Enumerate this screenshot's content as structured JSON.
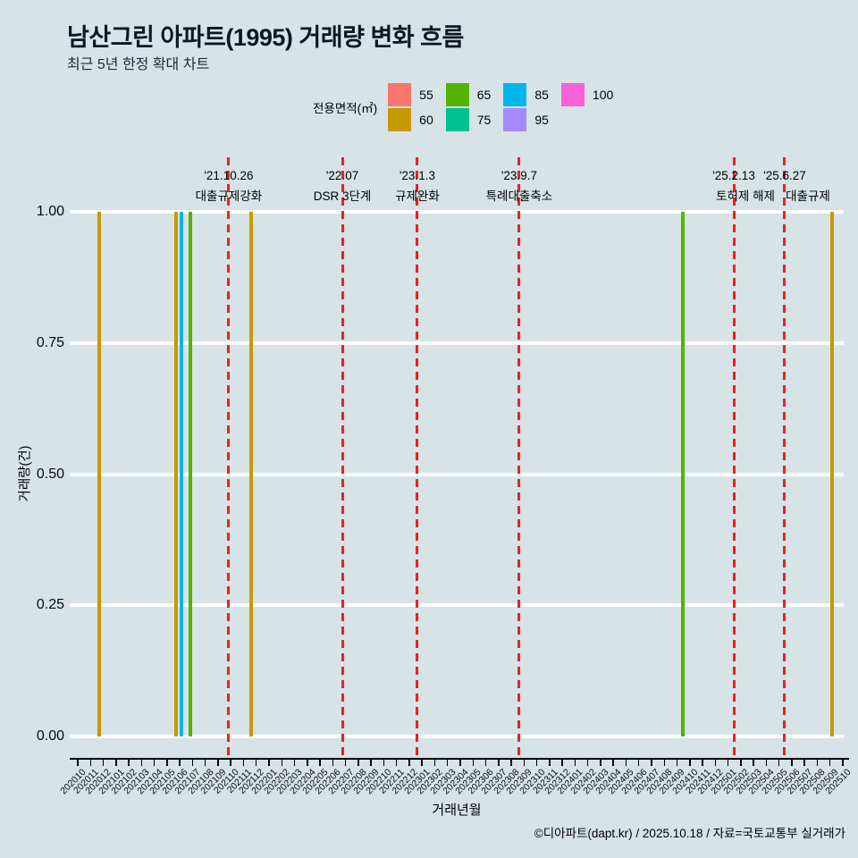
{
  "header": {
    "title": "남산그린 아파트(1995) 거래량 변화 흐름",
    "subtitle": "최근 5년 한정 확대 차트"
  },
  "legend": {
    "title": "전용면적(㎡)",
    "items": [
      {
        "area": "55",
        "color": "#F8766D"
      },
      {
        "area": "60",
        "color": "#C49A00"
      },
      {
        "area": "65",
        "color": "#53B400"
      },
      {
        "area": "75",
        "color": "#00C094"
      },
      {
        "area": "85",
        "color": "#00B6EB"
      },
      {
        "area": "95",
        "color": "#A58AFF"
      },
      {
        "area": "100",
        "color": "#FB61D7"
      }
    ]
  },
  "chart_data": {
    "type": "bar",
    "title": "남산그린 아파트(1995) 거래량 변화 흐름",
    "xlabel": "거래년월",
    "ylabel": "거래량(건)",
    "ylim": [
      0,
      1
    ],
    "grid": "horizontal major gridlines, white",
    "legend_position": "top",
    "y_ticks": [
      {
        "label": "1.00",
        "value": 1.0
      },
      {
        "label": "0.75",
        "value": 0.75
      },
      {
        "label": "0.50",
        "value": 0.5
      },
      {
        "label": "0.25",
        "value": 0.25
      },
      {
        "label": "0.00",
        "value": 0.0
      }
    ],
    "x_categories": [
      "202010",
      "202011",
      "202012",
      "202101",
      "202102",
      "202103",
      "202104",
      "202105",
      "202106",
      "202107",
      "202108",
      "202109",
      "202110",
      "202111",
      "202112",
      "202201",
      "202202",
      "202203",
      "202204",
      "202205",
      "202206",
      "202207",
      "202208",
      "202209",
      "202210",
      "202211",
      "202212",
      "202301",
      "202302",
      "202303",
      "202304",
      "202305",
      "202306",
      "202307",
      "202308",
      "202309",
      "202310",
      "202311",
      "202312",
      "202401",
      "202402",
      "202403",
      "202404",
      "202405",
      "202406",
      "202407",
      "202408",
      "202409",
      "202410",
      "202411",
      "202412",
      "202501",
      "202502",
      "202503",
      "202504",
      "202505",
      "202506",
      "202507",
      "202508",
      "202509",
      "202510"
    ],
    "bars": [
      {
        "month": "202012",
        "area": "60",
        "value": 1,
        "axis_pos": 1.68
      },
      {
        "month": "202106",
        "area": "60",
        "value": 1,
        "axis_pos": 7.71
      },
      {
        "month": "202106",
        "area": "85",
        "value": 1,
        "axis_pos": 8.16
      },
      {
        "month": "202107",
        "area": "65",
        "value": 1,
        "axis_pos": 8.83
      },
      {
        "month": "202112",
        "area": "60",
        "value": 1,
        "axis_pos": 13.63
      },
      {
        "month": "202409",
        "area": "65",
        "value": 1,
        "axis_pos": 47.45
      },
      {
        "month": "202509",
        "area": "60",
        "value": 1,
        "axis_pos": 59.19
      }
    ],
    "events": [
      {
        "date": "'21.10.26",
        "label": "대출규제강화",
        "axis_pos": 11.84
      },
      {
        "date": "'22.07",
        "label": "DSR 3단계",
        "axis_pos": 20.75
      },
      {
        "date": "'23.1.3",
        "label": "규제완화",
        "axis_pos": 26.63
      },
      {
        "date": "'23.9.7",
        "label": "특례대출축소",
        "axis_pos": 34.62
      },
      {
        "date": "'25.2.13",
        "label": "토허제 해제",
        "axis_pos": 51.45
      },
      {
        "date": "'25.6.27",
        "label": "대출규제",
        "axis_pos": 55.44
      }
    ]
  },
  "colors": {
    "background": "#D8E3E8",
    "grid": "#FFFFFF",
    "axis": "#000000",
    "event_line": "#EB221C",
    "title_text": "#0D1722"
  },
  "footer": {
    "credit": "©디아파트(dapt.kr) / 2025.10.18 / 자료=국토교통부 실거래가"
  }
}
